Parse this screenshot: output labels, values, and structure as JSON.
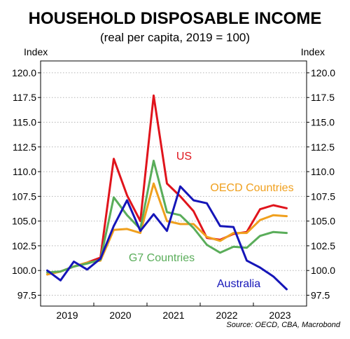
{
  "chart_data": {
    "type": "line",
    "title": "HOUSEHOLD DISPOSABLE INCOME",
    "subtitle": "(real per capita, 2019 = 100)",
    "ylabel_left": "Index",
    "ylabel_right": "Index",
    "source": "Source: OECD, CBA, Macrobond",
    "ylim": [
      96.4,
      121.2
    ],
    "yticks": [
      "97.5",
      "100.0",
      "102.5",
      "105.0",
      "107.5",
      "110.0",
      "112.5",
      "115.0",
      "117.5",
      "120.0"
    ],
    "xticks": [
      "2019",
      "2020",
      "2021",
      "2022",
      "2023"
    ],
    "grid": true,
    "x": [
      "2019-Q1",
      "2019-Q2",
      "2019-Q3",
      "2019-Q4",
      "2020-Q1",
      "2020-Q2",
      "2020-Q3",
      "2020-Q4",
      "2021-Q1",
      "2021-Q2",
      "2021-Q3",
      "2021-Q4",
      "2022-Q1",
      "2022-Q2",
      "2022-Q3",
      "2022-Q4",
      "2023-Q1",
      "2023-Q2",
      "2023-Q3",
      "2023-Q4"
    ],
    "series": [
      {
        "name": "US",
        "color": "#e0141c",
        "values": [
          99.6,
          99.9,
          100.4,
          100.8,
          101.3,
          111.3,
          107.6,
          105.0,
          117.7,
          108.8,
          107.5,
          106.0,
          103.3,
          103.1,
          103.7,
          103.9,
          106.2,
          106.6,
          106.3,
          null
        ]
      },
      {
        "name": "OECD Countries",
        "color": "#f0a01e",
        "values": [
          99.6,
          99.9,
          100.4,
          100.8,
          101.0,
          104.1,
          104.2,
          103.8,
          108.8,
          105.0,
          104.7,
          104.7,
          103.4,
          103.0,
          103.8,
          103.8,
          105.1,
          105.6,
          105.5,
          null
        ]
      },
      {
        "name": "G7 Countries",
        "color": "#5aad5a",
        "values": [
          99.8,
          99.9,
          100.4,
          100.7,
          101.1,
          107.4,
          105.6,
          104.2,
          111.1,
          105.9,
          105.6,
          104.3,
          102.6,
          101.8,
          102.4,
          102.3,
          103.5,
          103.9,
          103.8,
          null
        ]
      },
      {
        "name": "Australia",
        "color": "#1515b8",
        "values": [
          100.0,
          99.0,
          100.9,
          100.1,
          101.2,
          104.5,
          107.1,
          104.0,
          105.7,
          104.0,
          108.5,
          107.1,
          106.8,
          104.5,
          104.4,
          101.0,
          100.3,
          99.4,
          98.1,
          null
        ]
      }
    ]
  }
}
